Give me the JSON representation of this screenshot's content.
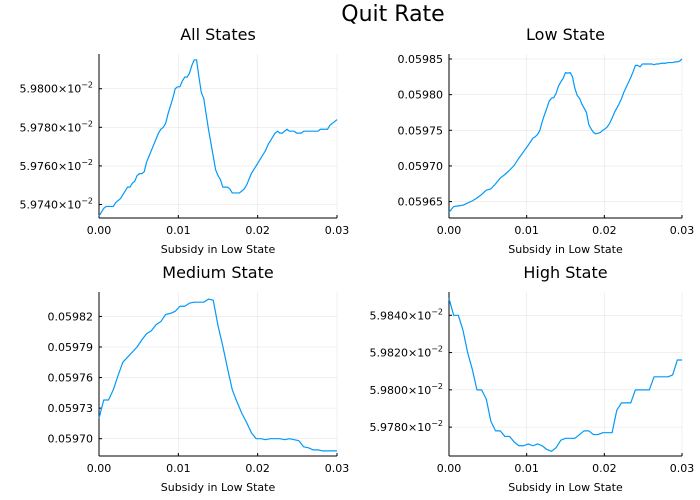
{
  "figure": {
    "title": "Quit Rate",
    "line_color": "#009AFA"
  },
  "chart_data": [
    {
      "type": "line",
      "title": "All States",
      "xlabel": "Subsidy in Low State",
      "ylabel": "",
      "xlim": [
        0,
        0.03
      ],
      "ylim": [
        0.059733,
        0.059818
      ],
      "xticks": [
        {
          "v": 0.0,
          "label": "0.00"
        },
        {
          "v": 0.01,
          "label": "0.01"
        },
        {
          "v": 0.02,
          "label": "0.02"
        },
        {
          "v": 0.03,
          "label": "0.03"
        }
      ],
      "yticks": [
        {
          "v": 0.05974,
          "mant": "5.9740",
          "exp": "−2"
        },
        {
          "v": 0.05976,
          "mant": "5.9760",
          "exp": "−2"
        },
        {
          "v": 0.05978,
          "mant": "5.9780",
          "exp": "−2"
        },
        {
          "v": 0.0598,
          "mant": "5.9800",
          "exp": "−2"
        }
      ],
      "grid": true,
      "legend": "none",
      "x": [
        0.0,
        0.0006,
        0.0009,
        0.0012,
        0.0015,
        0.0018,
        0.0021,
        0.0024,
        0.0027,
        0.003,
        0.0033,
        0.0036,
        0.0039,
        0.0042,
        0.0045,
        0.0048,
        0.0051,
        0.0054,
        0.0057,
        0.006,
        0.0063,
        0.0066,
        0.0069,
        0.0072,
        0.0075,
        0.0078,
        0.0081,
        0.0084,
        0.0087,
        0.009,
        0.0093,
        0.0096,
        0.0099,
        0.0102,
        0.0105,
        0.0108,
        0.0111,
        0.0114,
        0.0117,
        0.012,
        0.0123,
        0.0126,
        0.0129,
        0.0132,
        0.0135,
        0.0138,
        0.0141,
        0.0144,
        0.0147,
        0.015,
        0.0153,
        0.0156,
        0.0159,
        0.0162,
        0.0165,
        0.0168,
        0.0171,
        0.0174,
        0.0177,
        0.018,
        0.0183,
        0.0186,
        0.0189,
        0.0192,
        0.0195,
        0.0198,
        0.0201,
        0.0204,
        0.0207,
        0.021,
        0.0213,
        0.0216,
        0.0219,
        0.0222,
        0.0225,
        0.0228,
        0.0231,
        0.0234,
        0.0237,
        0.024,
        0.0243,
        0.0246,
        0.0249,
        0.0252,
        0.0255,
        0.0258,
        0.0261,
        0.0264,
        0.0267,
        0.027,
        0.0273,
        0.0276,
        0.0279,
        0.0282,
        0.0285,
        0.0288,
        0.0291,
        0.0294,
        0.0297,
        0.03
      ],
      "y": [
        0.059734,
        0.059738,
        0.059739,
        0.059739,
        0.059739,
        0.059739,
        0.059741,
        0.059742,
        0.059743,
        0.059745,
        0.059747,
        0.059749,
        0.059749,
        0.059751,
        0.059752,
        0.059755,
        0.059756,
        0.059756,
        0.059757,
        0.059762,
        0.059765,
        0.059768,
        0.059771,
        0.059774,
        0.059777,
        0.059779,
        0.05978,
        0.059782,
        0.059787,
        0.059791,
        0.059795,
        0.0598,
        0.059801,
        0.059801,
        0.059804,
        0.059806,
        0.059806,
        0.059808,
        0.059812,
        0.059815,
        0.059815,
        0.059806,
        0.059798,
        0.059795,
        0.059787,
        0.059779,
        0.059772,
        0.059765,
        0.059758,
        0.059755,
        0.059753,
        0.059749,
        0.059749,
        0.059749,
        0.059748,
        0.059746,
        0.059746,
        0.059746,
        0.059746,
        0.059747,
        0.059748,
        0.05975,
        0.059753,
        0.059756,
        0.059758,
        0.05976,
        0.059762,
        0.059764,
        0.059766,
        0.059768,
        0.059771,
        0.059773,
        0.059775,
        0.059777,
        0.059778,
        0.059777,
        0.059777,
        0.059778,
        0.059779,
        0.059778,
        0.059778,
        0.059778,
        0.059777,
        0.059777,
        0.059777,
        0.059778,
        0.059778,
        0.059778,
        0.059778,
        0.059778,
        0.059778,
        0.059778,
        0.059779,
        0.059779,
        0.059779,
        0.059779,
        0.059781,
        0.059782,
        0.059783,
        0.059784
      ]
    },
    {
      "type": "line",
      "title": "Low State",
      "xlabel": "Subsidy in Low State",
      "ylabel": "",
      "xlim": [
        0,
        0.03
      ],
      "ylim": [
        0.059627,
        0.059857
      ],
      "xticks": [
        {
          "v": 0.0,
          "label": "0.00"
        },
        {
          "v": 0.01,
          "label": "0.01"
        },
        {
          "v": 0.02,
          "label": "0.02"
        },
        {
          "v": 0.03,
          "label": "0.03"
        }
      ],
      "yticks": [
        {
          "v": 0.05965,
          "label": "0.05965"
        },
        {
          "v": 0.0597,
          "label": "0.05970"
        },
        {
          "v": 0.05975,
          "label": "0.05975"
        },
        {
          "v": 0.0598,
          "label": "0.05980"
        },
        {
          "v": 0.05985,
          "label": "0.05985"
        }
      ],
      "grid": true,
      "legend": "none",
      "x": [
        0.0,
        0.0006,
        0.0012,
        0.0018,
        0.0024,
        0.003,
        0.0036,
        0.0042,
        0.0048,
        0.0054,
        0.006,
        0.0066,
        0.0072,
        0.0078,
        0.0084,
        0.009,
        0.0096,
        0.0102,
        0.0108,
        0.0111,
        0.0114,
        0.0117,
        0.012,
        0.0123,
        0.0126,
        0.0129,
        0.0132,
        0.0135,
        0.0138,
        0.0141,
        0.0144,
        0.0147,
        0.015,
        0.0153,
        0.0156,
        0.0159,
        0.0162,
        0.0165,
        0.0168,
        0.0171,
        0.0174,
        0.0177,
        0.018,
        0.0183,
        0.0186,
        0.0189,
        0.0192,
        0.0195,
        0.0198,
        0.0201,
        0.0204,
        0.0207,
        0.021,
        0.0213,
        0.0216,
        0.0219,
        0.0222,
        0.0225,
        0.0228,
        0.0231,
        0.0234,
        0.0237,
        0.024,
        0.0243,
        0.0246,
        0.0249,
        0.0252,
        0.0255,
        0.0258,
        0.0261,
        0.0264,
        0.0267,
        0.027,
        0.0273,
        0.0276,
        0.0279,
        0.0282,
        0.0285,
        0.0288,
        0.0291,
        0.0294,
        0.0297,
        0.03
      ],
      "y": [
        0.059635,
        0.059643,
        0.059644,
        0.059645,
        0.059648,
        0.059651,
        0.059655,
        0.05966,
        0.059666,
        0.059668,
        0.059675,
        0.059683,
        0.059688,
        0.059694,
        0.059701,
        0.059711,
        0.05972,
        0.059729,
        0.059739,
        0.059741,
        0.059744,
        0.05975,
        0.059762,
        0.059772,
        0.059781,
        0.059791,
        0.059795,
        0.059796,
        0.059802,
        0.059812,
        0.059818,
        0.059823,
        0.059831,
        0.05983,
        0.059831,
        0.059825,
        0.059809,
        0.059799,
        0.059795,
        0.059787,
        0.059781,
        0.059775,
        0.059758,
        0.059752,
        0.059747,
        0.059745,
        0.059746,
        0.059747,
        0.05975,
        0.059752,
        0.059755,
        0.05976,
        0.059767,
        0.059775,
        0.059781,
        0.059787,
        0.059794,
        0.059803,
        0.05981,
        0.059817,
        0.059824,
        0.059832,
        0.059841,
        0.059841,
        0.059839,
        0.059843,
        0.059843,
        0.059843,
        0.059843,
        0.059843,
        0.059842,
        0.059843,
        0.059843,
        0.059844,
        0.059844,
        0.059844,
        0.059845,
        0.059845,
        0.059845,
        0.059846,
        0.059846,
        0.059847,
        0.05985
      ]
    },
    {
      "type": "line",
      "title": "Medium State",
      "xlabel": "Subsidy in Low State",
      "ylabel": "",
      "xlim": [
        0,
        0.03
      ],
      "ylim": [
        0.059683,
        0.059844
      ],
      "xticks": [
        {
          "v": 0.0,
          "label": "0.00"
        },
        {
          "v": 0.01,
          "label": "0.01"
        },
        {
          "v": 0.02,
          "label": "0.02"
        },
        {
          "v": 0.03,
          "label": "0.03"
        }
      ],
      "yticks": [
        {
          "v": 0.0597,
          "label": "0.05970"
        },
        {
          "v": 0.05973,
          "label": "0.05973"
        },
        {
          "v": 0.05976,
          "label": "0.05976"
        },
        {
          "v": 0.05979,
          "label": "0.05979"
        },
        {
          "v": 0.05982,
          "label": "0.05982"
        }
      ],
      "grid": true,
      "legend": "none",
      "x": [
        0.0,
        0.0006,
        0.0012,
        0.0018,
        0.0024,
        0.003,
        0.0036,
        0.0042,
        0.0048,
        0.0054,
        0.006,
        0.0066,
        0.0072,
        0.0078,
        0.0084,
        0.009,
        0.0096,
        0.0102,
        0.0108,
        0.0114,
        0.012,
        0.0126,
        0.0132,
        0.0138,
        0.0144,
        0.015,
        0.0156,
        0.0162,
        0.0168,
        0.0174,
        0.018,
        0.0186,
        0.0192,
        0.0198,
        0.0204,
        0.021,
        0.0216,
        0.0222,
        0.0228,
        0.0234,
        0.024,
        0.0246,
        0.0252,
        0.0258,
        0.0264,
        0.027,
        0.0276,
        0.0282,
        0.0288,
        0.0294,
        0.03
      ],
      "y": [
        0.05972,
        0.059738,
        0.059738,
        0.059748,
        0.059762,
        0.059775,
        0.05978,
        0.059785,
        0.05979,
        0.059797,
        0.059803,
        0.059806,
        0.059812,
        0.059815,
        0.059822,
        0.059823,
        0.059825,
        0.05983,
        0.05983,
        0.059833,
        0.059834,
        0.059834,
        0.059834,
        0.059837,
        0.059836,
        0.059811,
        0.059791,
        0.059769,
        0.059748,
        0.059736,
        0.059725,
        0.059716,
        0.059706,
        0.0597,
        0.0597,
        0.059699,
        0.0597,
        0.0597,
        0.0597,
        0.059699,
        0.0597,
        0.059699,
        0.059698,
        0.059692,
        0.059691,
        0.059689,
        0.059689,
        0.059688,
        0.059688,
        0.059688,
        0.059688
      ]
    },
    {
      "type": "line",
      "title": "High State",
      "xlabel": "Subsidy in Low State",
      "ylabel": "",
      "xlim": [
        0,
        0.03
      ],
      "ylim": [
        0.0597645,
        0.0598525
      ],
      "xticks": [
        {
          "v": 0.0,
          "label": "0.00"
        },
        {
          "v": 0.01,
          "label": "0.01"
        },
        {
          "v": 0.02,
          "label": "0.02"
        },
        {
          "v": 0.03,
          "label": "0.03"
        }
      ],
      "yticks": [
        {
          "v": 0.05978,
          "mant": "5.9780",
          "exp": "−2"
        },
        {
          "v": 0.0598,
          "mant": "5.9800",
          "exp": "−2"
        },
        {
          "v": 0.05982,
          "mant": "5.9820",
          "exp": "−2"
        },
        {
          "v": 0.05984,
          "mant": "5.9840",
          "exp": "−2"
        }
      ],
      "grid": true,
      "legend": "none",
      "x": [
        0.0,
        0.0006,
        0.0012,
        0.0018,
        0.0024,
        0.003,
        0.0036,
        0.0042,
        0.0048,
        0.0054,
        0.006,
        0.0066,
        0.0072,
        0.0078,
        0.0084,
        0.009,
        0.0096,
        0.0102,
        0.0108,
        0.0114,
        0.012,
        0.0126,
        0.0132,
        0.0138,
        0.0144,
        0.015,
        0.0156,
        0.0162,
        0.0168,
        0.0174,
        0.018,
        0.0186,
        0.0192,
        0.0198,
        0.0204,
        0.021,
        0.0216,
        0.0222,
        0.0228,
        0.0234,
        0.024,
        0.0246,
        0.0252,
        0.0258,
        0.0264,
        0.027,
        0.0276,
        0.0282,
        0.0288,
        0.0294,
        0.03
      ],
      "y": [
        0.059849,
        0.05984,
        0.05984,
        0.059832,
        0.05982,
        0.059811,
        0.0598,
        0.0598,
        0.059795,
        0.059783,
        0.059778,
        0.059778,
        0.059775,
        0.059775,
        0.059772,
        0.05977,
        0.05977,
        0.059771,
        0.05977,
        0.059771,
        0.05977,
        0.059768,
        0.059767,
        0.059769,
        0.059773,
        0.059774,
        0.059774,
        0.059774,
        0.059776,
        0.059778,
        0.059778,
        0.059776,
        0.059776,
        0.059777,
        0.059777,
        0.059777,
        0.059789,
        0.059793,
        0.059793,
        0.059793,
        0.0598,
        0.0598,
        0.0598,
        0.0598,
        0.059807,
        0.059807,
        0.059807,
        0.059807,
        0.059808,
        0.059816,
        0.059816
      ]
    }
  ]
}
